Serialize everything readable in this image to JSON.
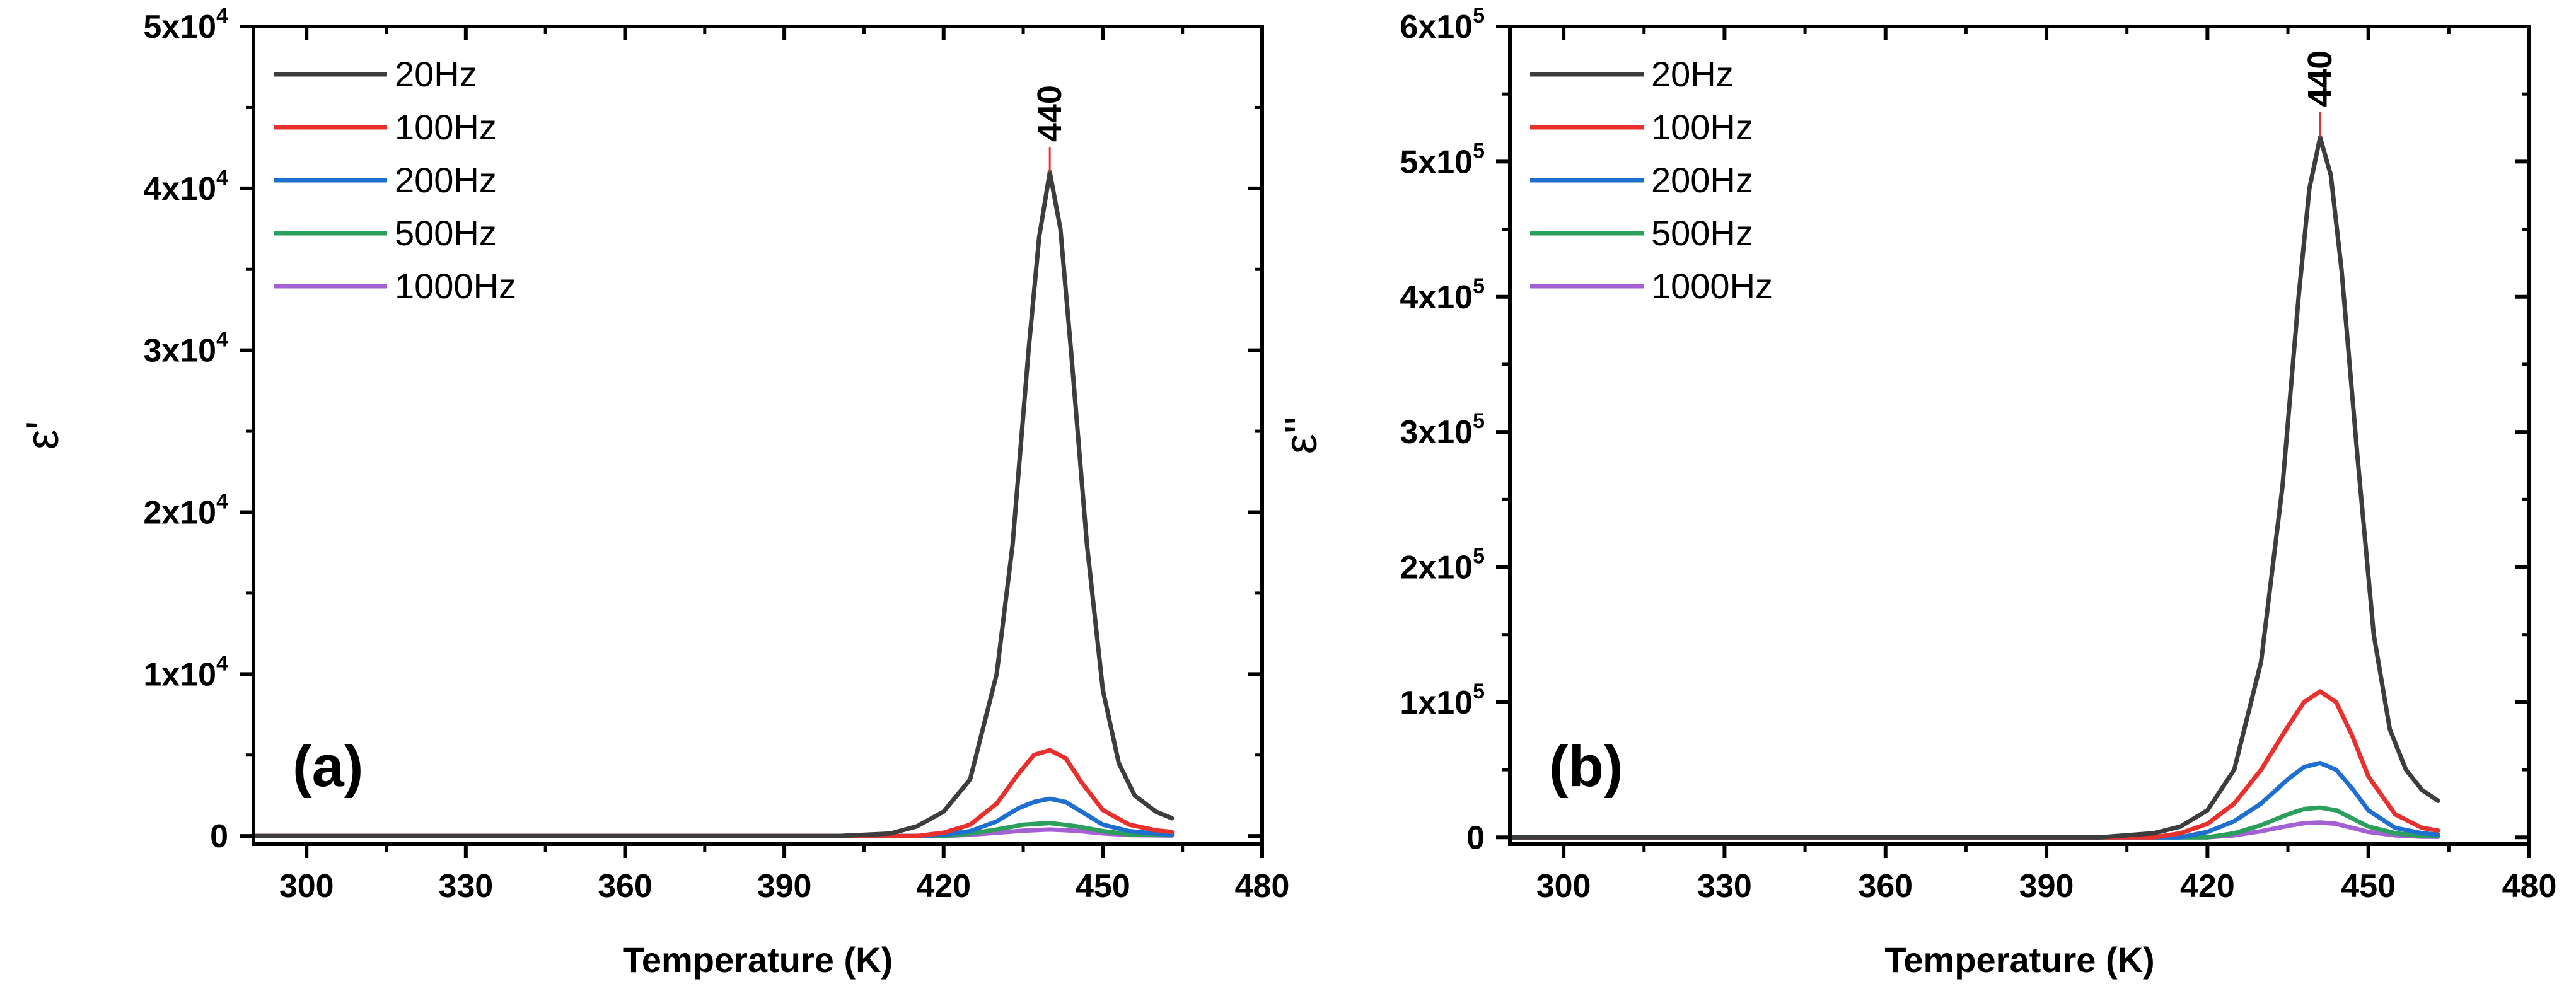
{
  "chart_data": [
    {
      "type": "line",
      "panel_label": "(a)",
      "xlabel": "Temperature (K)",
      "ylabel": "ε'",
      "xlim": [
        290,
        480
      ],
      "ylim": [
        -500,
        50000
      ],
      "xticks": [
        300,
        330,
        360,
        390,
        420,
        450,
        480
      ],
      "xtick_labels": [
        "300",
        "330",
        "360",
        "390",
        "420",
        "450",
        "480"
      ],
      "yticks": [
        0,
        10000,
        20000,
        30000,
        40000,
        50000
      ],
      "ytick_labels": [
        {
          "base": "0",
          "exp": ""
        },
        {
          "base": "1x10",
          "exp": "4"
        },
        {
          "base": "2x10",
          "exp": "4"
        },
        {
          "base": "3x10",
          "exp": "4"
        },
        {
          "base": "4x10",
          "exp": "4"
        },
        {
          "base": "5x10",
          "exp": "4"
        }
      ],
      "annotation": {
        "text": "440",
        "x": 440
      },
      "legend_position": "top-left",
      "series": [
        {
          "name": "20Hz",
          "color": "#3d3d3d",
          "x": [
            290,
            400,
            410,
            415,
            420,
            425,
            430,
            433,
            436,
            438,
            440,
            442,
            444,
            447,
            450,
            453,
            456,
            460,
            463
          ],
          "y": [
            0,
            0,
            150,
            600,
            1500,
            3500,
            10000,
            18000,
            30000,
            37000,
            41000,
            37500,
            30000,
            18000,
            9000,
            4500,
            2500,
            1500,
            1100
          ]
        },
        {
          "name": "100Hz",
          "color": "#e8302e",
          "x": [
            290,
            415,
            420,
            425,
            430,
            434,
            437,
            440,
            443,
            446,
            450,
            455,
            460,
            463
          ],
          "y": [
            0,
            0,
            200,
            700,
            2000,
            3800,
            5000,
            5300,
            4800,
            3300,
            1600,
            700,
            350,
            250
          ]
        },
        {
          "name": "200Hz",
          "color": "#1f6fd1",
          "x": [
            290,
            415,
            420,
            425,
            430,
            434,
            437,
            440,
            443,
            446,
            450,
            455,
            460,
            463
          ],
          "y": [
            0,
            0,
            80,
            300,
            900,
            1700,
            2100,
            2300,
            2100,
            1500,
            700,
            300,
            150,
            100
          ]
        },
        {
          "name": "500Hz",
          "color": "#2aa05a",
          "x": [
            290,
            420,
            425,
            430,
            435,
            440,
            445,
            450,
            455,
            463
          ],
          "y": [
            0,
            0,
            150,
            400,
            700,
            800,
            600,
            300,
            100,
            50
          ]
        },
        {
          "name": "1000Hz",
          "color": "#a461d6",
          "x": [
            290,
            420,
            425,
            430,
            435,
            440,
            445,
            450,
            455,
            463
          ],
          "y": [
            0,
            0,
            80,
            200,
            330,
            400,
            320,
            160,
            60,
            30
          ]
        }
      ]
    },
    {
      "type": "line",
      "panel_label": "(b)",
      "xlabel": "Temperature (K)",
      "ylabel": "ε''",
      "xlim": [
        290,
        480
      ],
      "ylim": [
        -5000,
        600000
      ],
      "xticks": [
        300,
        330,
        360,
        390,
        420,
        450,
        480
      ],
      "xtick_labels": [
        "300",
        "330",
        "360",
        "390",
        "420",
        "450",
        "480"
      ],
      "yticks": [
        0,
        100000,
        200000,
        300000,
        400000,
        500000,
        600000
      ],
      "ytick_labels": [
        {
          "base": "0",
          "exp": ""
        },
        {
          "base": "1x10",
          "exp": "5"
        },
        {
          "base": "2x10",
          "exp": "5"
        },
        {
          "base": "3x10",
          "exp": "5"
        },
        {
          "base": "4x10",
          "exp": "5"
        },
        {
          "base": "5x10",
          "exp": "5"
        },
        {
          "base": "6x10",
          "exp": "5"
        }
      ],
      "annotation": {
        "text": "440",
        "x": 441
      },
      "legend_position": "top-left",
      "series": [
        {
          "name": "20Hz",
          "color": "#3d3d3d",
          "x": [
            290,
            400,
            410,
            415,
            420,
            425,
            430,
            434,
            437,
            439,
            441,
            443,
            445,
            448,
            451,
            454,
            457,
            460,
            463
          ],
          "y": [
            0,
            0,
            3000,
            8000,
            20000,
            50000,
            130000,
            260000,
            400000,
            480000,
            518000,
            490000,
            420000,
            280000,
            150000,
            80000,
            50000,
            35000,
            27000
          ]
        },
        {
          "name": "100Hz",
          "color": "#e8302e",
          "x": [
            290,
            410,
            415,
            420,
            425,
            430,
            435,
            438,
            441,
            444,
            447,
            450,
            455,
            460,
            463
          ],
          "y": [
            0,
            0,
            3000,
            10000,
            25000,
            50000,
            82000,
            100000,
            108000,
            100000,
            75000,
            45000,
            17000,
            7000,
            5000
          ]
        },
        {
          "name": "200Hz",
          "color": "#1f6fd1",
          "x": [
            290,
            415,
            420,
            425,
            430,
            435,
            438,
            441,
            444,
            447,
            450,
            455,
            460,
            463
          ],
          "y": [
            0,
            0,
            4000,
            12000,
            25000,
            43000,
            52000,
            55000,
            50000,
            36000,
            20000,
            7000,
            3000,
            2000
          ]
        },
        {
          "name": "500Hz",
          "color": "#2aa05a",
          "x": [
            290,
            420,
            425,
            430,
            435,
            438,
            441,
            444,
            447,
            450,
            455,
            460,
            463
          ],
          "y": [
            0,
            0,
            3000,
            9000,
            17000,
            21000,
            22000,
            20000,
            14000,
            8000,
            3000,
            1000,
            800
          ]
        },
        {
          "name": "1000Hz",
          "color": "#a461d6",
          "x": [
            290,
            420,
            425,
            430,
            435,
            438,
            441,
            444,
            447,
            450,
            455,
            460,
            463
          ],
          "y": [
            0,
            0,
            1500,
            4500,
            8500,
            10500,
            11000,
            10000,
            7000,
            4000,
            1500,
            500,
            400
          ]
        }
      ]
    }
  ]
}
